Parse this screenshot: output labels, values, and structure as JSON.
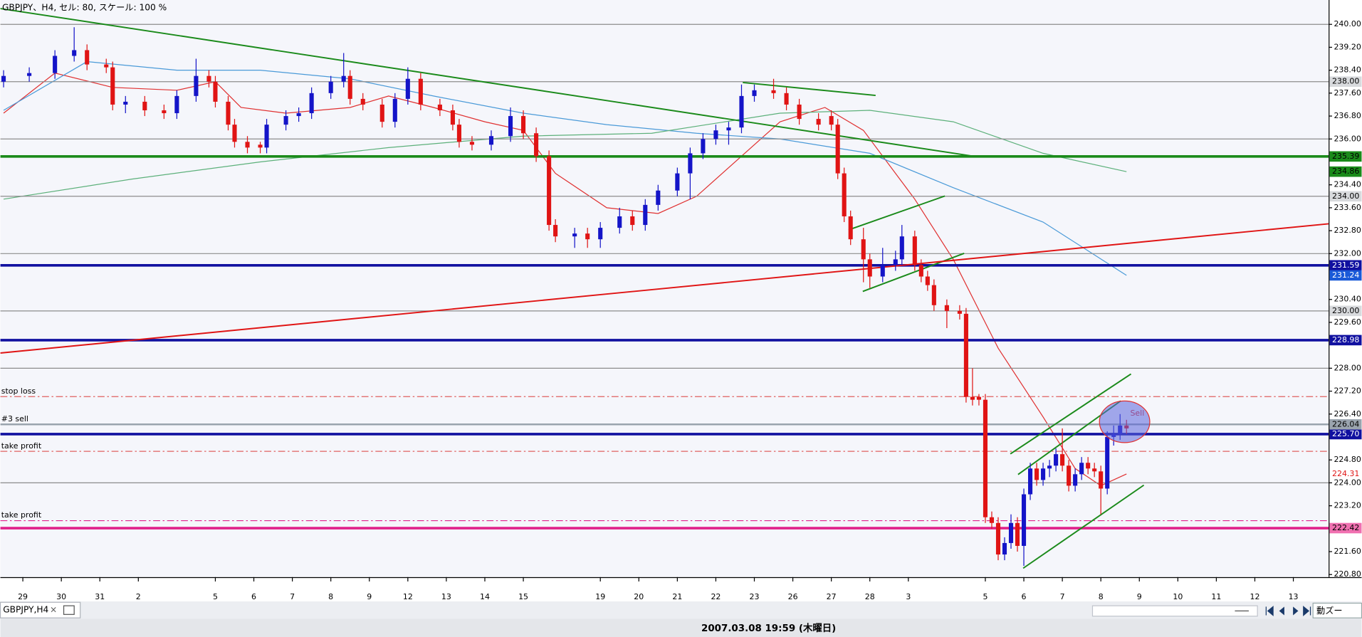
{
  "window": {
    "header": "GBPJPY、H4, セル: 80, スケール: 100 %",
    "tab": "GBPJPY,H4",
    "status": "2007.03.08 19:59 (木曜日)",
    "zoom": "動ズー"
  },
  "chart_data": {
    "type": "candlestick",
    "up_color": "#1414c8",
    "down_color": "#e01414",
    "xlim": [
      -0.5,
      206.5
    ],
    "ylim": [
      220.71,
      240.85
    ],
    "x": [
      0,
      4,
      8,
      11,
      13,
      16,
      17,
      19,
      22,
      25,
      27,
      30,
      32,
      33,
      35,
      36,
      38,
      40,
      41,
      44,
      46,
      48,
      51,
      53,
      54,
      56,
      59,
      61,
      63,
      65,
      68,
      70,
      71,
      73,
      76,
      79,
      81,
      83,
      85,
      86,
      89,
      91,
      93,
      96,
      98,
      100,
      102,
      105,
      107,
      109,
      111,
      113,
      115,
      117,
      120,
      122,
      124,
      127,
      129,
      130,
      131,
      132,
      134,
      135,
      137,
      139,
      140,
      142,
      143,
      144,
      145,
      147,
      149,
      150,
      151,
      152,
      153,
      154,
      155,
      156,
      157,
      158,
      159,
      160,
      161,
      162,
      163,
      164,
      165,
      166,
      167,
      168,
      169,
      170,
      171,
      172,
      173,
      174,
      175
    ],
    "open": [
      238.0,
      238.2,
      238.3,
      238.9,
      239.1,
      238.6,
      238.5,
      237.2,
      237.3,
      237.0,
      236.9,
      237.5,
      238.2,
      238.0,
      237.3,
      236.5,
      235.9,
      235.8,
      235.7,
      236.5,
      236.8,
      236.9,
      237.6,
      238.0,
      238.2,
      237.4,
      237.2,
      236.6,
      237.4,
      238.1,
      237.2,
      237.0,
      236.5,
      235.9,
      235.8,
      236.1,
      236.8,
      236.2,
      235.4,
      233.0,
      232.6,
      232.7,
      232.5,
      232.9,
      233.3,
      233.0,
      233.7,
      234.2,
      234.8,
      235.5,
      236.0,
      236.3,
      236.4,
      237.5,
      237.7,
      237.6,
      237.2,
      236.7,
      236.8,
      236.5,
      234.8,
      233.3,
      232.5,
      231.8,
      231.2,
      231.6,
      231.8,
      232.6,
      231.6,
      231.2,
      230.9,
      230.2,
      230.0,
      229.9,
      227.0,
      227.0,
      226.9,
      222.8,
      222.6,
      221.5,
      221.9,
      222.6,
      221.8,
      223.6,
      224.5,
      224.1,
      224.5,
      224.6,
      225.0,
      224.6,
      223.9,
      224.3,
      224.7,
      224.5,
      224.4,
      223.8,
      225.6,
      225.7,
      226.0
    ],
    "high": [
      238.4,
      238.5,
      239.1,
      239.9,
      239.3,
      238.8,
      238.7,
      237.5,
      237.5,
      237.2,
      237.7,
      238.8,
      238.4,
      238.2,
      237.5,
      236.7,
      236.1,
      235.9,
      236.7,
      237.0,
      237.1,
      237.8,
      238.2,
      239.0,
      238.4,
      237.6,
      237.4,
      237.6,
      238.5,
      238.3,
      237.4,
      237.2,
      236.7,
      236.1,
      236.3,
      237.1,
      237.0,
      236.4,
      235.6,
      233.2,
      232.9,
      232.9,
      233.1,
      233.6,
      233.5,
      233.9,
      234.4,
      235.0,
      235.7,
      236.2,
      236.5,
      236.6,
      237.9,
      237.9,
      238.1,
      237.8,
      237.4,
      236.9,
      237.0,
      236.7,
      235.0,
      233.5,
      232.9,
      232.0,
      232.2,
      232.1,
      233.0,
      232.8,
      231.8,
      231.4,
      231.1,
      230.4,
      230.2,
      230.1,
      228.0,
      227.1,
      227.1,
      223.0,
      222.8,
      222.1,
      222.9,
      222.8,
      223.8,
      224.7,
      224.7,
      224.7,
      224.8,
      225.2,
      225.9,
      224.8,
      224.5,
      224.9,
      224.9,
      224.7,
      224.6,
      225.8,
      226.0,
      226.4,
      226.2
    ],
    "low": [
      237.8,
      238.0,
      238.1,
      238.7,
      238.4,
      238.3,
      237.0,
      236.9,
      236.8,
      236.7,
      236.7,
      237.3,
      237.8,
      237.1,
      236.3,
      235.7,
      235.5,
      235.5,
      235.5,
      236.3,
      236.6,
      236.7,
      237.4,
      237.8,
      237.2,
      237.0,
      236.4,
      236.4,
      237.2,
      237.0,
      236.8,
      236.3,
      235.7,
      235.6,
      235.6,
      235.9,
      236.0,
      235.2,
      232.8,
      232.4,
      232.2,
      232.2,
      232.2,
      232.7,
      232.8,
      232.8,
      233.5,
      234.0,
      233.9,
      235.3,
      235.8,
      235.8,
      236.2,
      237.3,
      237.4,
      237.0,
      236.5,
      236.3,
      236.3,
      234.6,
      233.1,
      232.3,
      231.0,
      230.8,
      231.0,
      231.4,
      231.6,
      231.4,
      231.0,
      230.7,
      230.0,
      229.4,
      229.7,
      226.8,
      226.7,
      226.7,
      222.6,
      222.4,
      221.3,
      221.3,
      221.7,
      221.6,
      221.1,
      223.4,
      223.9,
      223.9,
      224.2,
      224.4,
      224.4,
      223.7,
      223.7,
      224.1,
      224.3,
      224.2,
      222.9,
      223.6,
      225.3,
      225.5,
      225.7
    ],
    "close": [
      238.2,
      238.3,
      238.9,
      239.1,
      238.6,
      238.5,
      237.2,
      237.3,
      237.0,
      236.9,
      237.5,
      238.2,
      238.0,
      237.3,
      236.5,
      235.9,
      235.7,
      235.7,
      236.5,
      236.8,
      236.9,
      237.6,
      238.0,
      238.2,
      237.4,
      237.2,
      236.6,
      237.4,
      238.1,
      237.2,
      237.0,
      236.5,
      235.9,
      235.8,
      236.1,
      236.8,
      236.2,
      235.4,
      233.0,
      232.6,
      232.7,
      232.5,
      232.9,
      233.3,
      233.0,
      233.7,
      234.2,
      234.8,
      235.5,
      236.0,
      236.3,
      236.4,
      237.5,
      237.7,
      237.6,
      237.2,
      236.7,
      236.5,
      236.5,
      234.8,
      233.3,
      232.5,
      231.8,
      231.2,
      231.6,
      231.8,
      232.6,
      231.6,
      231.2,
      230.9,
      230.2,
      230.0,
      229.9,
      227.0,
      226.9,
      226.9,
      222.8,
      222.6,
      221.5,
      221.9,
      222.6,
      221.8,
      223.6,
      224.5,
      224.1,
      224.5,
      224.6,
      225.0,
      224.6,
      223.9,
      224.3,
      224.7,
      224.5,
      224.4,
      223.8,
      225.6,
      225.7,
      226.0,
      225.9
    ],
    "xticks": [
      {
        "value": 3,
        "label": "29"
      },
      {
        "value": 9,
        "label": "30"
      },
      {
        "value": 15,
        "label": "31"
      },
      {
        "value": 21,
        "label": "2"
      },
      {
        "value": 33,
        "label": "5"
      },
      {
        "value": 39,
        "label": "6"
      },
      {
        "value": 45,
        "label": "7"
      },
      {
        "value": 51,
        "label": "8"
      },
      {
        "value": 57,
        "label": "9"
      },
      {
        "value": 63,
        "label": "12"
      },
      {
        "value": 69,
        "label": "13"
      },
      {
        "value": 75,
        "label": "14"
      },
      {
        "value": 81,
        "label": "15"
      },
      {
        "value": 93,
        "label": "19"
      },
      {
        "value": 99,
        "label": "20"
      },
      {
        "value": 105,
        "label": "21"
      },
      {
        "value": 111,
        "label": "22"
      },
      {
        "value": 117,
        "label": "23"
      },
      {
        "value": 123,
        "label": "26"
      },
      {
        "value": 129,
        "label": "27"
      },
      {
        "value": 135,
        "label": "28"
      },
      {
        "value": 141,
        "label": "3"
      },
      {
        "value": 153,
        "label": "5"
      },
      {
        "value": 159,
        "label": "6"
      },
      {
        "value": 165,
        "label": "7"
      },
      {
        "value": 171,
        "label": "8"
      },
      {
        "value": 177,
        "label": "9"
      },
      {
        "value": 183,
        "label": "10"
      },
      {
        "value": 189,
        "label": "11"
      },
      {
        "value": 195,
        "label": "12"
      },
      {
        "value": 201,
        "label": "13"
      }
    ],
    "yticks": [
      {
        "value": 240,
        "label": "240.00"
      },
      {
        "value": 239.2,
        "label": "239.20"
      },
      {
        "value": 238.4,
        "label": "238.40"
      },
      {
        "value": 237.6,
        "label": "237.60"
      },
      {
        "value": 236.8,
        "label": "236.80"
      },
      {
        "value": 236,
        "label": "236.00"
      },
      {
        "value": 234.4,
        "label": "234.40"
      },
      {
        "value": 233.6,
        "label": "233.60"
      },
      {
        "value": 232.8,
        "label": "232.80"
      },
      {
        "value": 232,
        "label": "232.00"
      },
      {
        "value": 230.4,
        "label": "230.40"
      },
      {
        "value": 229.6,
        "label": "229.60"
      },
      {
        "value": 228,
        "label": "228.00"
      },
      {
        "value": 227.2,
        "label": "227.20"
      },
      {
        "value": 226.4,
        "label": "226.40"
      },
      {
        "value": 224.8,
        "label": "224.80"
      },
      {
        "value": 224,
        "label": "224.00"
      },
      {
        "value": 223.2,
        "label": "223.20"
      },
      {
        "value": 221.6,
        "label": "221.60"
      },
      {
        "value": 220.8,
        "label": "220.80"
      }
    ],
    "moving_averages": [
      {
        "color": "#e03030",
        "x": [
          0,
          8,
          17,
          27,
          33,
          37,
          44,
          54,
          60,
          67,
          75,
          81,
          86,
          94,
          102,
          108,
          115,
          121,
          128,
          134,
          142,
          148,
          155,
          162,
          167,
          171,
          175
        ],
        "values": [
          236.9,
          238.3,
          237.8,
          237.7,
          238.0,
          237.1,
          236.9,
          237.1,
          237.5,
          237.1,
          236.6,
          236.3,
          234.8,
          233.6,
          233.4,
          234.0,
          235.4,
          236.6,
          237.1,
          236.3,
          233.9,
          231.8,
          228.7,
          226.3,
          224.5,
          223.9,
          224.31
        ]
      },
      {
        "color": "#4a9ad8",
        "x": [
          0,
          13,
          27,
          40,
          54,
          67,
          81,
          94,
          108,
          121,
          135,
          148,
          162,
          175
        ],
        "values": [
          237.0,
          238.7,
          238.4,
          238.4,
          238.1,
          237.5,
          236.9,
          236.5,
          236.2,
          236.0,
          235.5,
          234.3,
          233.1,
          231.24
        ]
      },
      {
        "color": "#5cb07a",
        "x": [
          0,
          20,
          40,
          60,
          81,
          101,
          121,
          135,
          148,
          162,
          175
        ],
        "values": [
          233.9,
          234.6,
          235.2,
          235.7,
          236.1,
          236.2,
          236.9,
          237.0,
          236.6,
          235.5,
          234.86
        ]
      }
    ],
    "trendlines": [
      {
        "color": "#1a8a1a",
        "x": [
          -0.5,
          151.1
        ],
        "values": [
          240.55,
          235.4
        ]
      },
      {
        "color": "#1a8a1a",
        "x": [
          115.2,
          135.9
        ],
        "values": [
          237.97,
          237.52
        ]
      },
      {
        "color": "#1a8a1a",
        "x": [
          131.7,
          146.7
        ],
        "values": [
          232.83,
          234.01
        ]
      },
      {
        "color": "#1a8a1a",
        "x": [
          133.9,
          149.7
        ],
        "values": [
          230.68,
          232.01
        ]
      },
      {
        "color": "#1a8a1a",
        "x": [
          156.9,
          175.7
        ],
        "values": [
          225.01,
          227.8
        ]
      },
      {
        "color": "#1a8a1a",
        "x": [
          158.1,
          174.1
        ],
        "values": [
          224.29,
          226.86
        ]
      },
      {
        "color": "#1a8a1a",
        "x": [
          158.9,
          177.7
        ],
        "values": [
          221.02,
          223.92
        ]
      },
      {
        "color": "#e01414",
        "x": [
          -0.5,
          206.5
        ],
        "values": [
          228.53,
          233.04
        ]
      }
    ],
    "levels": [
      {
        "value": 240,
        "color": "#8c8c8c",
        "width": 1
      },
      {
        "value": 238,
        "color": "#8c8c8c",
        "width": 1,
        "label": "238.00"
      },
      {
        "value": 236,
        "color": "#8c8c8c",
        "width": 1
      },
      {
        "value": 234,
        "color": "#8c8c8c",
        "width": 1,
        "label": "234.00"
      },
      {
        "value": 232,
        "color": "#8c8c8c",
        "width": 1
      },
      {
        "value": 230,
        "color": "#8c8c8c",
        "width": 1,
        "label": "230.00"
      },
      {
        "value": 228,
        "color": "#8c8c8c",
        "width": 1
      },
      {
        "value": 224,
        "color": "#8c8c8c",
        "width": 1
      },
      {
        "value": 235.39,
        "color": "#1a8a1a",
        "width": 3
      },
      {
        "value": 231.59,
        "color": "#1010a0",
        "width": 3
      },
      {
        "value": 228.98,
        "color": "#1010a0",
        "width": 3
      },
      {
        "value": 225.7,
        "color": "#1010a0",
        "width": 3,
        "label": "225.70"
      },
      {
        "value": 226.04,
        "color": "#9aa4ae",
        "width": 2,
        "text": "#3 sell"
      },
      {
        "value": 222.42,
        "color": "#e0208a",
        "width": 3
      },
      {
        "value": 227.01,
        "color": "#e06060",
        "width": 1,
        "dash": "8 3 2 3",
        "text": "stop loss"
      },
      {
        "value": 225.1,
        "color": "#e06060",
        "width": 1,
        "dash": "8 3 2 3",
        "text": "take profit"
      },
      {
        "value": 222.68,
        "color": "#e0208a",
        "width": 1,
        "dash": "8 3 2 3",
        "text": "take profit"
      }
    ],
    "annotations": [
      {
        "text": "Sell",
        "x": 174.5,
        "value": 226.3
      }
    ]
  }
}
